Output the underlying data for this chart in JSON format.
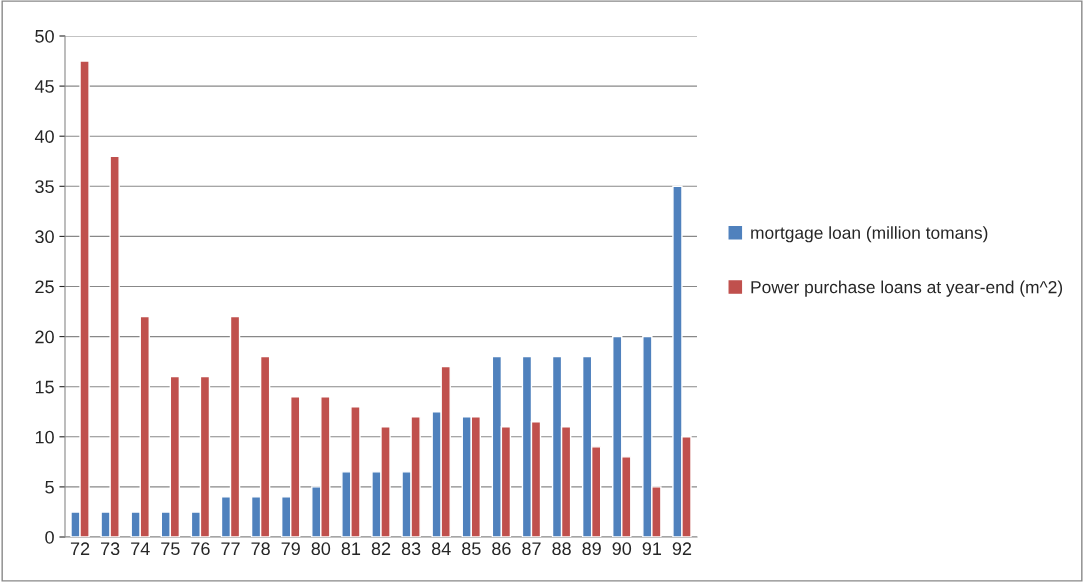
{
  "chart_data": {
    "type": "bar",
    "categories": [
      "72",
      "73",
      "74",
      "75",
      "76",
      "77",
      "78",
      "79",
      "80",
      "81",
      "82",
      "83",
      "84",
      "85",
      "86",
      "87",
      "88",
      "89",
      "90",
      "91",
      "92"
    ],
    "series": [
      {
        "name": "mortgage loan (million tomans)",
        "color": "#4f81bd",
        "values": [
          2.5,
          2.5,
          2.5,
          2.5,
          2.5,
          4,
          4,
          4,
          5,
          6.5,
          6.5,
          6.5,
          12.5,
          12,
          18,
          18,
          18,
          18,
          20,
          20,
          35
        ]
      },
      {
        "name": "Power purchase loans at year-end (m^2)",
        "color": "#c0504d",
        "values": [
          47.5,
          38,
          22,
          16,
          16,
          22,
          18,
          14,
          14,
          13,
          11,
          12,
          17,
          12,
          11,
          11.5,
          11,
          9,
          8,
          5,
          10
        ]
      }
    ],
    "ylim": [
      0,
      50
    ],
    "yticks": [
      0,
      5,
      10,
      15,
      20,
      25,
      30,
      35,
      40,
      45,
      50
    ],
    "grid": "y",
    "legend": "right"
  }
}
